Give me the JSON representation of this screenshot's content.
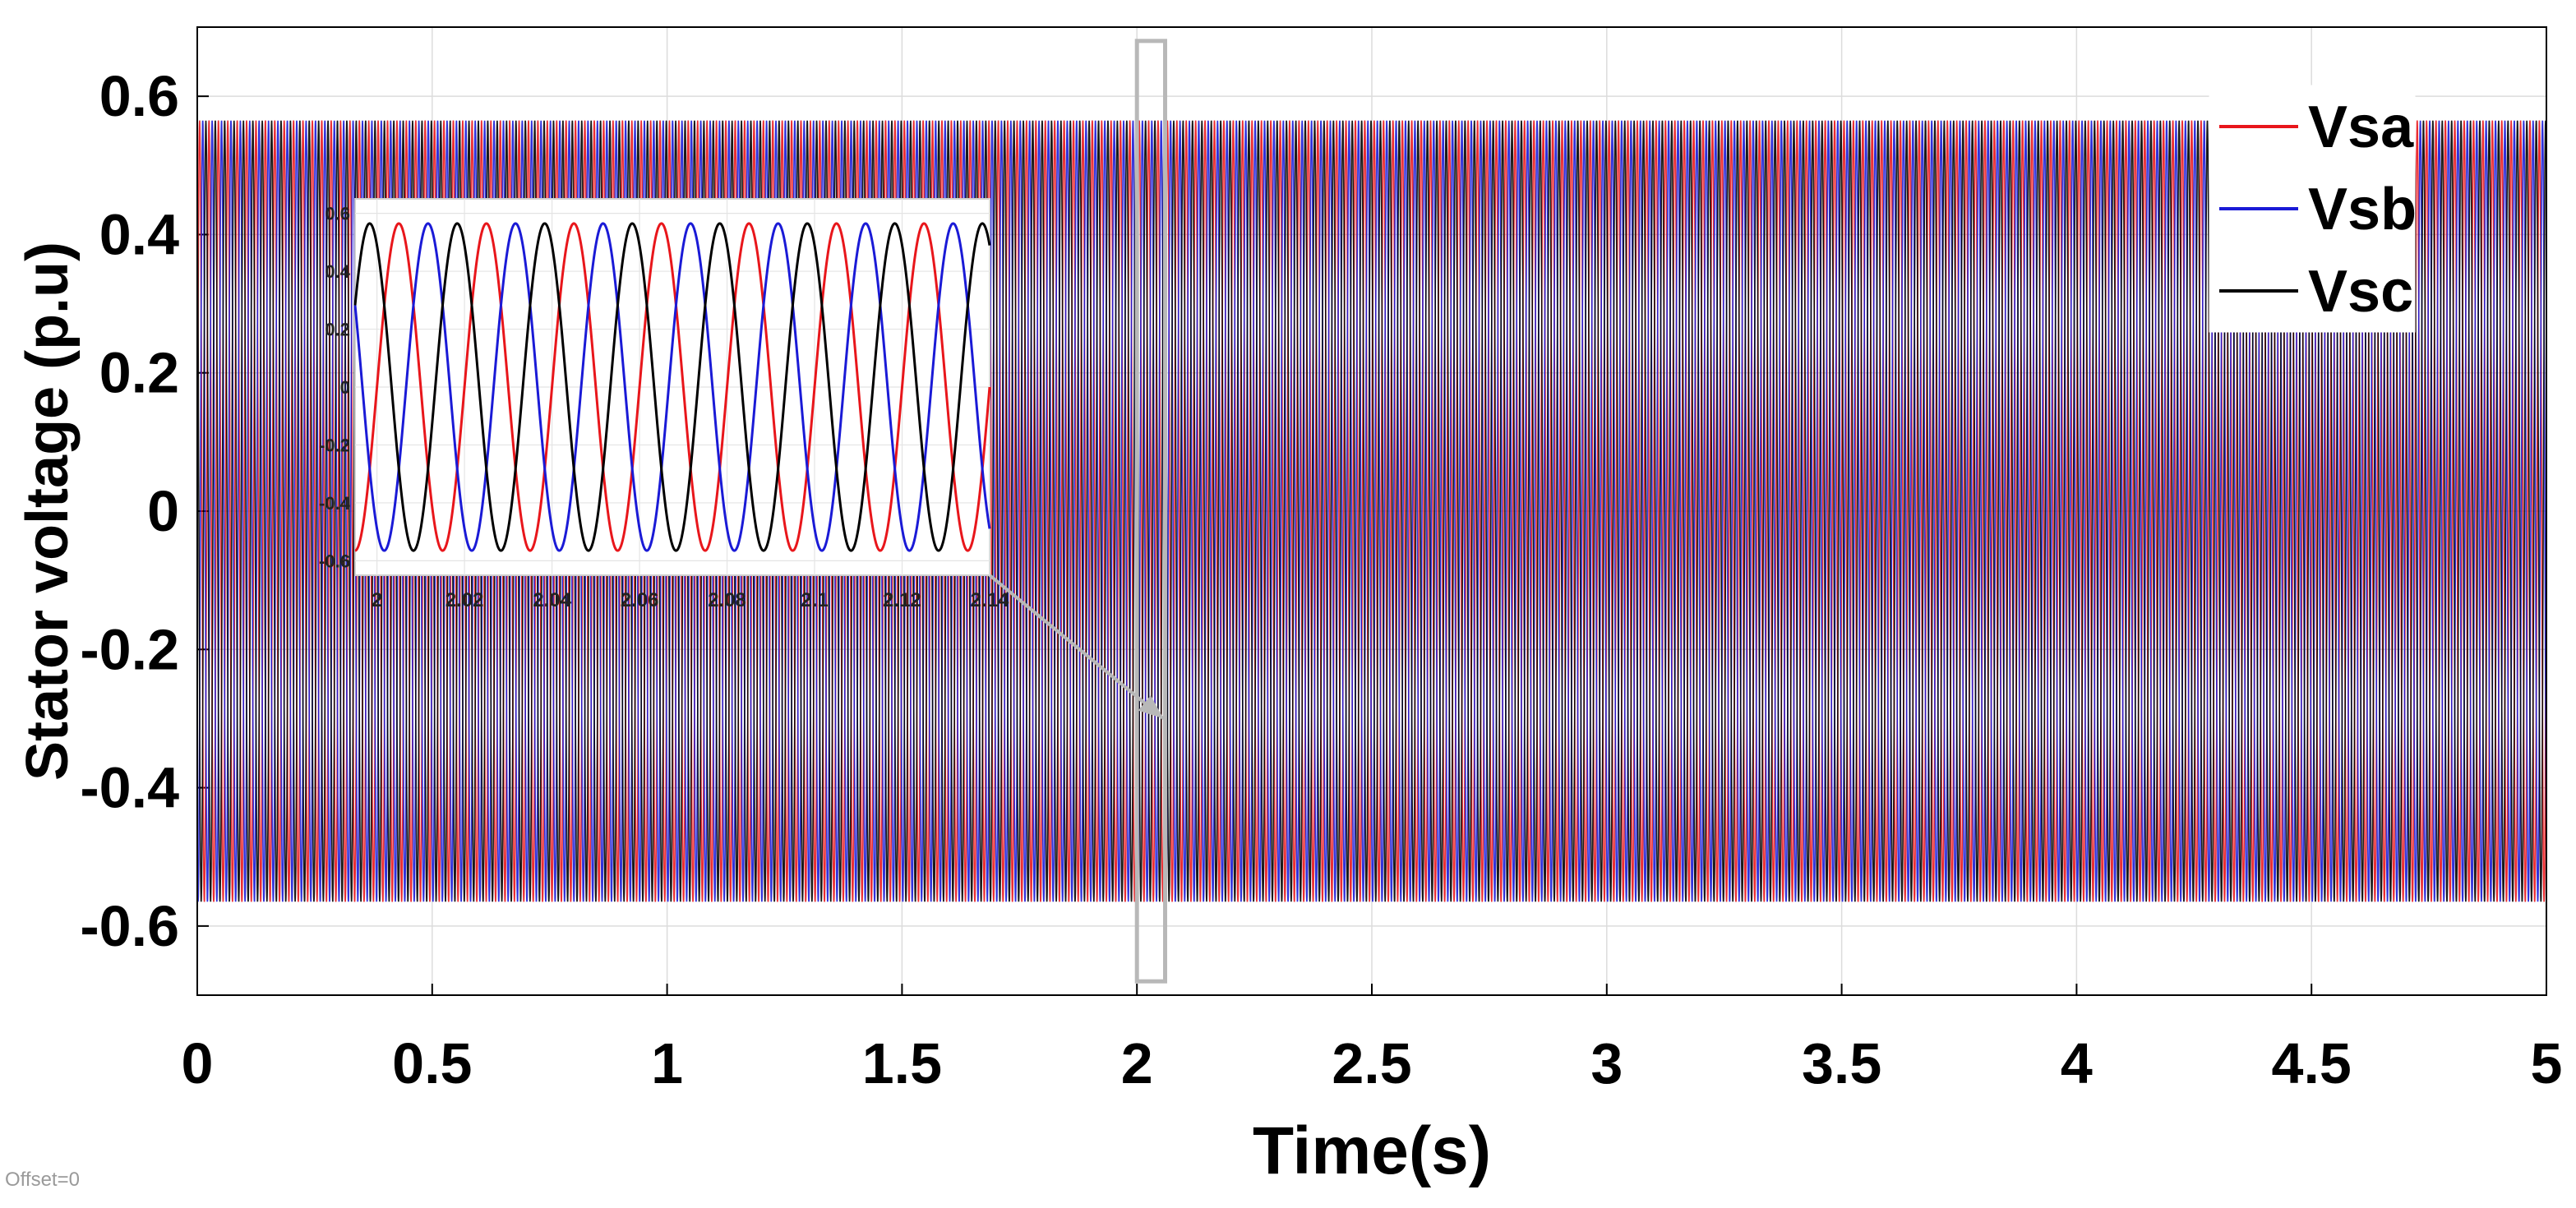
{
  "chart_data": {
    "type": "line",
    "title": "",
    "xlabel": "Time(s)",
    "ylabel": "Stator voltage (p.u)",
    "xlim": [
      0,
      5
    ],
    "ylim": [
      -0.7,
      0.7
    ],
    "xticks": [
      "0",
      "0.5",
      "1",
      "1.5",
      "2",
      "2.5",
      "3",
      "3.5",
      "4",
      "4.5",
      "5"
    ],
    "yticks": [
      "-0.6",
      "-0.4",
      "-0.2",
      "0",
      "0.2",
      "0.4",
      "0.6"
    ],
    "grid": true,
    "legend_position": "top-right",
    "amplitude": 0.565,
    "frequency_hz": 50,
    "series": [
      {
        "name": "Vsa",
        "color": "#e8161b",
        "phase_deg": 0
      },
      {
        "name": "Vsb",
        "color": "#1a1ad6",
        "phase_deg": -120
      },
      {
        "name": "Vsc",
        "color": "#000000",
        "phase_deg": 120
      }
    ],
    "zoom_region": {
      "xlim": [
        2.0,
        2.06
      ],
      "ylim": [
        -0.68,
        0.68
      ]
    },
    "inset": {
      "xlim": [
        1.995,
        2.14
      ],
      "ylim": [
        -0.65,
        0.65
      ],
      "xticks": [
        "2",
        "2.02",
        "2.04",
        "2.06",
        "2.08",
        "2.1",
        "2.12",
        "2.14"
      ],
      "yticks": [
        "-0.6",
        "-0.4",
        "-0.2",
        "0",
        "0.2",
        "0.4",
        "0.6"
      ]
    }
  },
  "footer": {
    "offset_text": "Offset=0"
  },
  "colors": {
    "background": "#ffffff",
    "grid": "#dcdcdc",
    "axis": "#000000",
    "zoom_box": "#b8b8b8"
  }
}
